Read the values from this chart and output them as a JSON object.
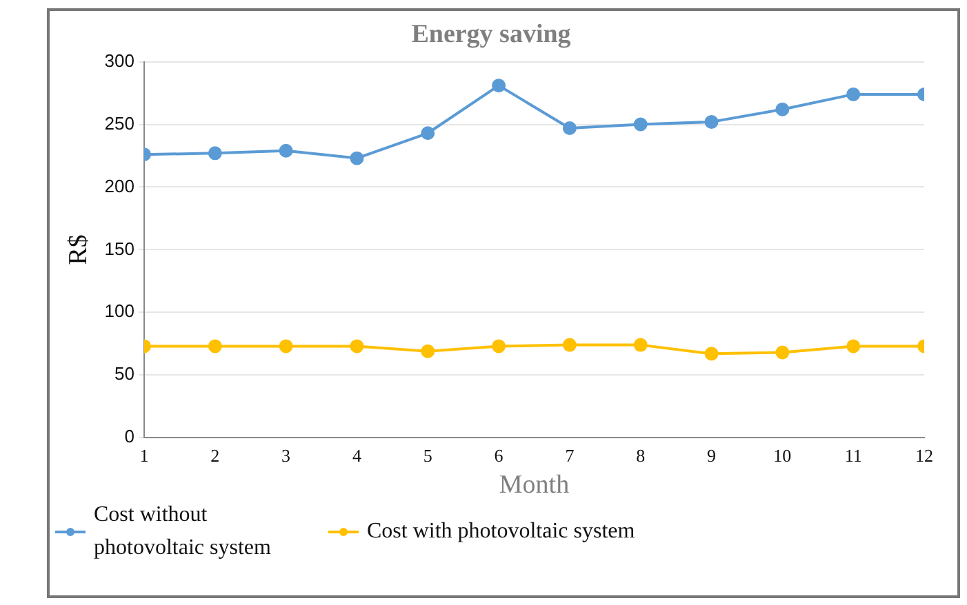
{
  "chart_data": {
    "type": "line",
    "title": "Energy saving",
    "xlabel": "Month",
    "ylabel": "R$",
    "x": [
      1,
      2,
      3,
      4,
      5,
      6,
      7,
      8,
      9,
      10,
      11,
      12
    ],
    "xlim": [
      1,
      12
    ],
    "xticks": [
      1,
      2,
      3,
      4,
      5,
      6,
      7,
      8,
      9,
      10,
      11,
      12
    ],
    "series": [
      {
        "name": "Cost without photovoltaic system",
        "color": "#5b9bd5",
        "values": [
          226,
          227,
          229,
          223,
          243,
          281,
          247,
          250,
          252,
          262,
          274,
          274
        ]
      },
      {
        "name": "Cost with photovoltaic system",
        "color": "#ffc000",
        "values": [
          73,
          73,
          73,
          73,
          69,
          73,
          74,
          74,
          67,
          68,
          73,
          73
        ]
      }
    ],
    "ylim": [
      0,
      300
    ],
    "yticks": [
      0,
      50,
      100,
      150,
      200,
      250,
      300
    ],
    "grid": "y",
    "legend": "bottom",
    "marker": "circle",
    "line_style": "solid"
  }
}
